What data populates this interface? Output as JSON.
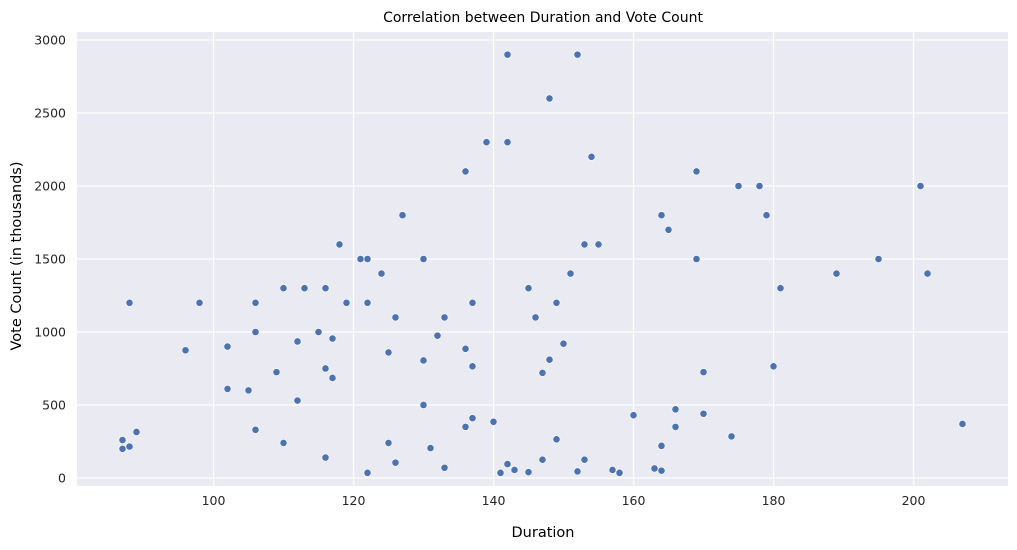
{
  "chart_data": {
    "type": "scatter",
    "title": "Correlation between Duration and Vote Count",
    "xlabel": "Duration",
    "ylabel": "Vote Count (in thousands)",
    "xlim": [
      80.5,
      213.5
    ],
    "ylim": [
      -55,
      3055
    ],
    "xticks": [
      100,
      120,
      140,
      160,
      180,
      200
    ],
    "yticks": [
      0,
      500,
      1000,
      1500,
      2000,
      2500,
      3000
    ],
    "grid": true,
    "background": "#eaeaf2",
    "point_color": "#4c72b0",
    "points": [
      [
        87,
        260
      ],
      [
        87,
        200
      ],
      [
        88,
        215
      ],
      [
        88,
        1200
      ],
      [
        89,
        315
      ],
      [
        96,
        875
      ],
      [
        98,
        1200
      ],
      [
        102,
        900
      ],
      [
        102,
        610
      ],
      [
        105,
        600
      ],
      [
        106,
        1200
      ],
      [
        106,
        1000
      ],
      [
        106,
        330
      ],
      [
        109,
        725
      ],
      [
        110,
        1300
      ],
      [
        110,
        240
      ],
      [
        112,
        935
      ],
      [
        112,
        530
      ],
      [
        113,
        1300
      ],
      [
        115,
        1000
      ],
      [
        116,
        1300
      ],
      [
        116,
        750
      ],
      [
        116,
        140
      ],
      [
        117,
        955
      ],
      [
        117,
        685
      ],
      [
        118,
        1600
      ],
      [
        119,
        1200
      ],
      [
        121,
        1500
      ],
      [
        122,
        1500
      ],
      [
        122,
        1200
      ],
      [
        122,
        35
      ],
      [
        124,
        1400
      ],
      [
        125,
        860
      ],
      [
        125,
        240
      ],
      [
        126,
        1100
      ],
      [
        126,
        105
      ],
      [
        127,
        1800
      ],
      [
        130,
        1500
      ],
      [
        130,
        805
      ],
      [
        130,
        500
      ],
      [
        131,
        205
      ],
      [
        132,
        975
      ],
      [
        133,
        1100
      ],
      [
        133,
        70
      ],
      [
        136,
        2100
      ],
      [
        136,
        885
      ],
      [
        136,
        350
      ],
      [
        137,
        1200
      ],
      [
        137,
        765
      ],
      [
        137,
        410
      ],
      [
        139,
        2300
      ],
      [
        140,
        385
      ],
      [
        141,
        35
      ],
      [
        142,
        2900
      ],
      [
        142,
        2300
      ],
      [
        142,
        95
      ],
      [
        143,
        55
      ],
      [
        145,
        1300
      ],
      [
        145,
        40
      ],
      [
        146,
        1100
      ],
      [
        147,
        720
      ],
      [
        147,
        125
      ],
      [
        148,
        2600
      ],
      [
        148,
        810
      ],
      [
        149,
        1200
      ],
      [
        149,
        265
      ],
      [
        150,
        920
      ],
      [
        151,
        1400
      ],
      [
        152,
        2900
      ],
      [
        152,
        45
      ],
      [
        153,
        1600
      ],
      [
        153,
        125
      ],
      [
        154,
        2200
      ],
      [
        155,
        1600
      ],
      [
        157,
        55
      ],
      [
        158,
        35
      ],
      [
        160,
        430
      ],
      [
        163,
        65
      ],
      [
        164,
        1800
      ],
      [
        164,
        220
      ],
      [
        164,
        50
      ],
      [
        165,
        1700
      ],
      [
        166,
        470
      ],
      [
        166,
        350
      ],
      [
        169,
        2100
      ],
      [
        169,
        1500
      ],
      [
        170,
        725
      ],
      [
        170,
        440
      ],
      [
        174,
        285
      ],
      [
        175,
        2000
      ],
      [
        178,
        2000
      ],
      [
        179,
        1800
      ],
      [
        180,
        765
      ],
      [
        181,
        1300
      ],
      [
        189,
        1400
      ],
      [
        195,
        1500
      ],
      [
        201,
        2000
      ],
      [
        202,
        1400
      ],
      [
        207,
        370
      ]
    ]
  }
}
